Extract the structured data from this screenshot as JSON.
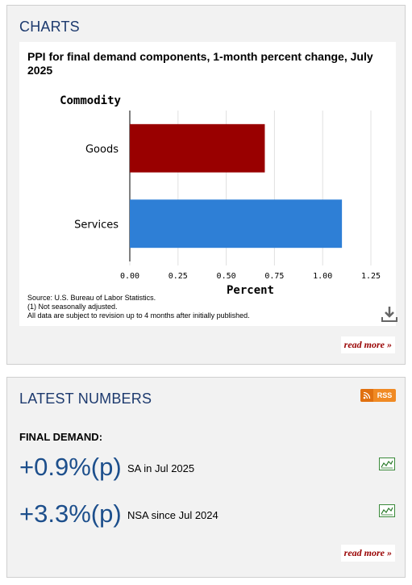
{
  "charts_panel": {
    "title": "CHARTS",
    "read_more": "read more »"
  },
  "chart": {
    "title": "PPI for final demand components, 1-month percent change, July 2025",
    "source_lines": [
      "Source: U.S. Bureau of Labor Statistics.",
      "(1) Not seasonally adjusted.",
      "All data are subject to revision up to 4 months after initially published."
    ],
    "download_icon": "download-icon"
  },
  "chart_data": {
    "type": "bar",
    "orientation": "horizontal",
    "title": "PPI for final demand components, 1-month percent change, July 2025",
    "categories": [
      "Goods",
      "Services"
    ],
    "values": [
      0.7,
      1.1
    ],
    "colors": [
      "#990000",
      "#2e7fd6"
    ],
    "ylabel": "Commodity",
    "xlabel": "Percent",
    "xlim": [
      0,
      1.25
    ],
    "x_ticks": [
      "0.00",
      "0.25",
      "0.50",
      "0.75",
      "1.00",
      "1.25"
    ],
    "grid": true
  },
  "latest_panel": {
    "title": "LATEST NUMBERS",
    "rss_label": "RSS",
    "final_demand_label": "FINAL DEMAND:",
    "stats": [
      {
        "value": "+0.9%(p)",
        "desc": "SA in Jul 2025",
        "icon": "trend-chart-icon"
      },
      {
        "value": "+3.3%(p)",
        "desc": "NSA since Jul 2024",
        "icon": "trend-chart-icon"
      }
    ],
    "read_more": "read more »"
  }
}
